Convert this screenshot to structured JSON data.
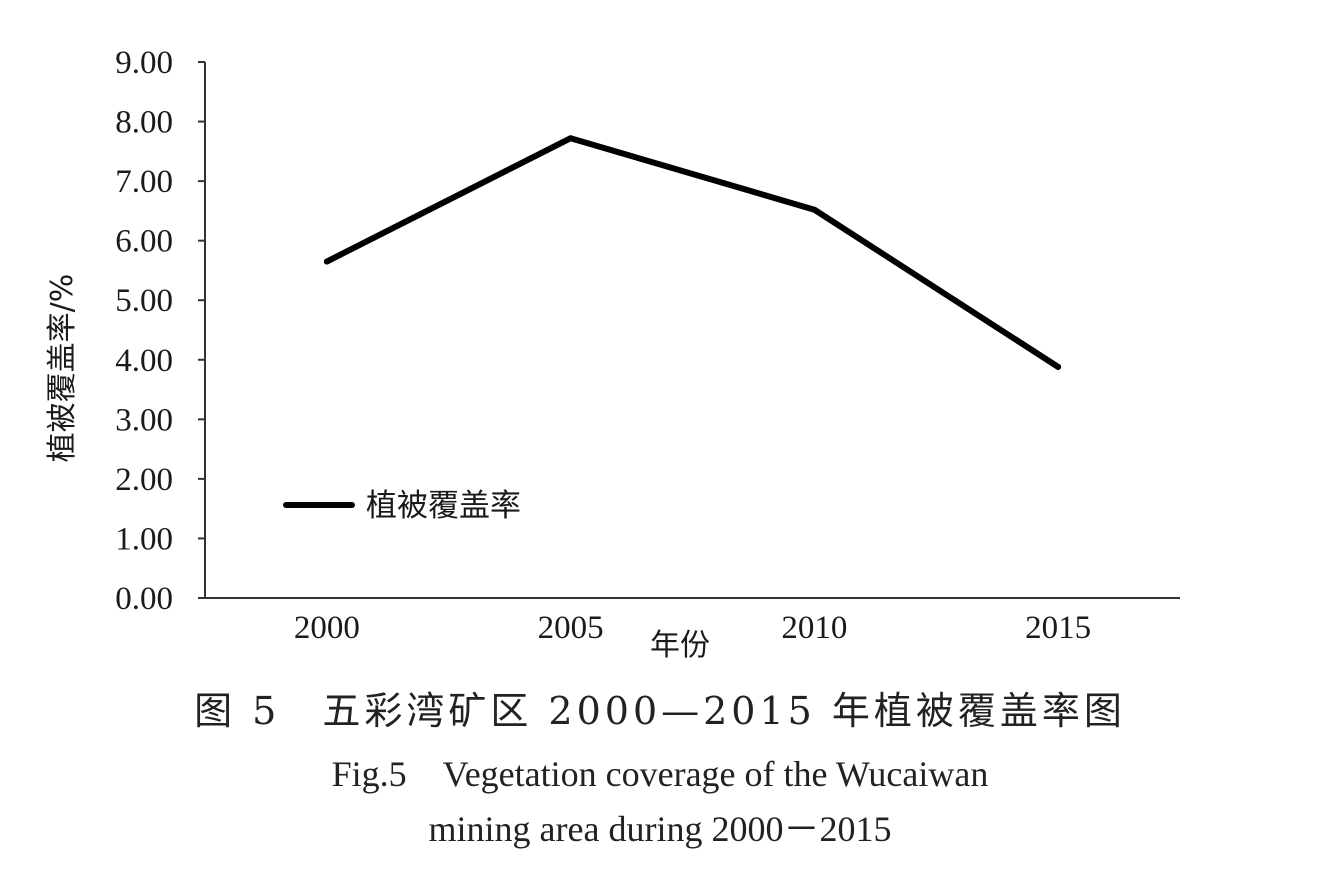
{
  "chart_data": {
    "type": "line",
    "categories": [
      "2000",
      "2005",
      "2010",
      "2015"
    ],
    "series": [
      {
        "name": "植被覆盖率",
        "values": [
          5.65,
          7.72,
          6.52,
          3.88
        ]
      }
    ],
    "xlabel": "年份",
    "ylabel": "植被覆盖率/%",
    "ylim": [
      0,
      9
    ],
    "yticks": [
      "0.00",
      "1.00",
      "2.00",
      "3.00",
      "4.00",
      "5.00",
      "6.00",
      "7.00",
      "8.00",
      "9.00"
    ],
    "grid": false,
    "legend_position": "bottom-left",
    "line_color": "#000000"
  },
  "caption": {
    "cn": "图 5　五彩湾矿区 2000—2015 年植被覆盖率图",
    "en_line1": "Fig.5　Vegetation coverage of the Wucaiwan",
    "en_line2": "mining area during 2000－2015"
  }
}
